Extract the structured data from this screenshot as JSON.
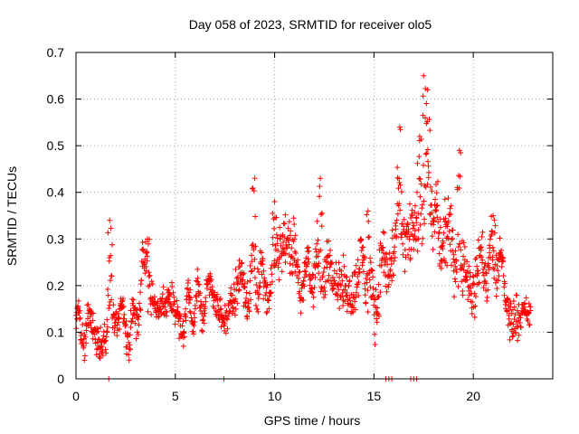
{
  "chart_data": {
    "type": "scatter",
    "title": "Day 058 of 2023, SRMTID for receiver olo5",
    "xlabel": "GPS time / hours",
    "ylabel": "SRMTID / TECUs",
    "xlim": [
      0,
      24
    ],
    "ylim": [
      0,
      0.7
    ],
    "xticks": [
      0,
      5,
      10,
      15,
      20
    ],
    "xtick_labels": [
      "0",
      "5",
      "10",
      "15",
      "20"
    ],
    "yticks": [
      0,
      0.1,
      0.2,
      0.3,
      0.4,
      0.5,
      0.6,
      0.7
    ],
    "ytick_labels": [
      "0",
      "0.1",
      "0.2",
      "0.3",
      "0.4",
      "0.5",
      "0.6",
      "0.7"
    ],
    "grid": true,
    "marker": "+",
    "color": "#ff0000",
    "series": [
      {
        "name": "SRMTID",
        "profile_x": [
          0.0,
          0.5,
          1.0,
          1.5,
          1.7,
          2.0,
          2.5,
          3.0,
          3.4,
          3.7,
          4.0,
          4.5,
          5.0,
          5.5,
          6.0,
          6.5,
          7.0,
          7.5,
          8.0,
          8.5,
          9.0,
          9.5,
          10.0,
          10.5,
          11.0,
          11.5,
          12.0,
          12.5,
          13.0,
          13.5,
          14.0,
          14.5,
          15.0,
          15.5,
          16.0,
          16.3,
          16.6,
          17.0,
          17.3,
          17.6,
          18.0,
          18.5,
          19.0,
          19.5,
          20.0,
          20.5,
          21.0,
          21.5,
          22.0,
          22.5,
          22.9
        ],
        "profile_y": [
          0.11,
          0.1,
          0.1,
          0.12,
          0.2,
          0.14,
          0.1,
          0.13,
          0.22,
          0.24,
          0.13,
          0.12,
          0.13,
          0.14,
          0.16,
          0.17,
          0.18,
          0.16,
          0.22,
          0.18,
          0.22,
          0.2,
          0.24,
          0.26,
          0.24,
          0.21,
          0.24,
          0.22,
          0.22,
          0.23,
          0.22,
          0.23,
          0.16,
          0.25,
          0.28,
          0.34,
          0.26,
          0.28,
          0.33,
          0.42,
          0.34,
          0.3,
          0.26,
          0.27,
          0.22,
          0.24,
          0.25,
          0.22,
          0.14,
          0.12,
          0.1
        ],
        "spread": [
          0.05,
          0.06,
          0.05,
          0.06,
          0.09,
          0.05,
          0.05,
          0.06,
          0.06,
          0.07,
          0.04,
          0.05,
          0.05,
          0.05,
          0.05,
          0.05,
          0.05,
          0.05,
          0.07,
          0.06,
          0.1,
          0.07,
          0.08,
          0.08,
          0.09,
          0.07,
          0.09,
          0.08,
          0.07,
          0.08,
          0.08,
          0.08,
          0.08,
          0.1,
          0.12,
          0.14,
          0.1,
          0.1,
          0.12,
          0.16,
          0.1,
          0.1,
          0.1,
          0.1,
          0.08,
          0.08,
          0.08,
          0.08,
          0.07,
          0.06,
          0.04
        ],
        "peaks": [
          {
            "x": 1.7,
            "y": 0.34
          },
          {
            "x": 3.6,
            "y": 0.3
          },
          {
            "x": 9.0,
            "y": 0.43
          },
          {
            "x": 10.0,
            "y": 0.38
          },
          {
            "x": 12.3,
            "y": 0.43
          },
          {
            "x": 14.7,
            "y": 0.36
          },
          {
            "x": 16.3,
            "y": 0.54
          },
          {
            "x": 17.3,
            "y": 0.52
          },
          {
            "x": 17.5,
            "y": 0.65
          },
          {
            "x": 17.7,
            "y": 0.62
          },
          {
            "x": 19.3,
            "y": 0.49
          },
          {
            "x": 21.0,
            "y": 0.35
          }
        ],
        "zeros_x": [
          1.65,
          7.45,
          15.6,
          15.75,
          15.9,
          16.85,
          17.0,
          17.15
        ]
      }
    ]
  }
}
